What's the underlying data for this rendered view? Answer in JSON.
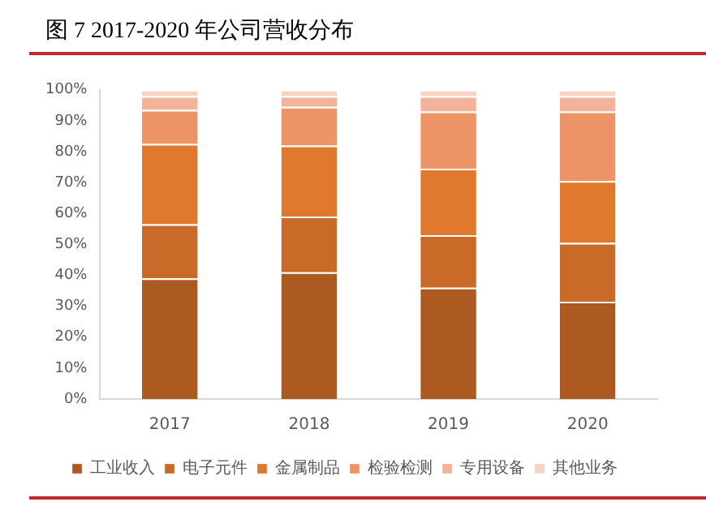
{
  "chart_data": {
    "type": "bar",
    "title": "图 7 2017-2020 年公司营收分布",
    "categories": [
      "2017",
      "2018",
      "2019",
      "2020"
    ],
    "stacked": true,
    "ylim": [
      0,
      100
    ],
    "yticks": [
      {
        "value": 0,
        "label": "0%"
      },
      {
        "value": 10,
        "label": "10%"
      },
      {
        "value": 20,
        "label": "20%"
      },
      {
        "value": 30,
        "label": "30%"
      },
      {
        "value": 40,
        "label": "40%"
      },
      {
        "value": 50,
        "label": "50%"
      },
      {
        "value": 60,
        "label": "60%"
      },
      {
        "value": 70,
        "label": "70%"
      },
      {
        "value": 80,
        "label": "80%"
      },
      {
        "value": 90,
        "label": "90%"
      },
      {
        "value": 100,
        "label": "100%"
      }
    ],
    "grid": false,
    "legend": "bottom",
    "series": [
      {
        "name": "工业收入",
        "color": "#ad5a21",
        "values": [
          39,
          41,
          36,
          31.5
        ]
      },
      {
        "name": "电子元件",
        "color": "#c96a28",
        "values": [
          17.5,
          18,
          17,
          19
        ]
      },
      {
        "name": "金属制品",
        "color": "#e0782e",
        "values": [
          26,
          23,
          21.5,
          20
        ]
      },
      {
        "name": "检验检测",
        "color": "#ed9466",
        "values": [
          11,
          12.5,
          18.5,
          22.5
        ]
      },
      {
        "name": "专用设备",
        "color": "#f3b39b",
        "values": [
          4.5,
          3.5,
          5,
          5
        ]
      },
      {
        "name": "其他业务",
        "color": "#f8d3c3",
        "values": [
          2,
          2,
          2,
          2
        ]
      }
    ]
  }
}
